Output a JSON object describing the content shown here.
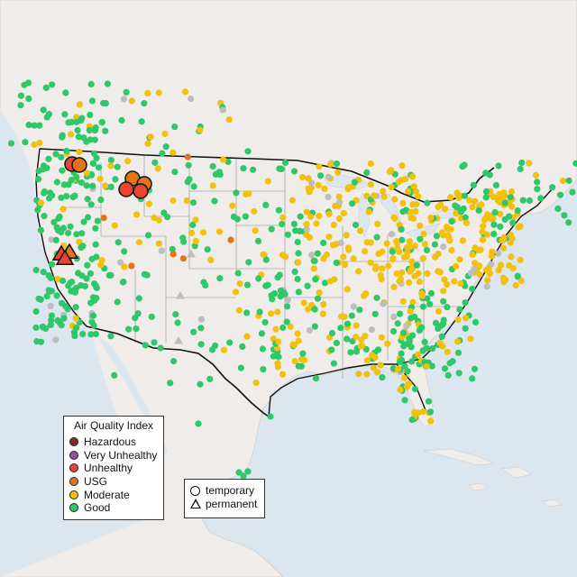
{
  "legend": {
    "title": "Air Quality Index",
    "categories": [
      {
        "label": "Hazardous",
        "color": "#7e2c2c"
      },
      {
        "label": "Very Unhealthy",
        "color": "#8f52a8"
      },
      {
        "label": "Unhealthy",
        "color": "#e8442f"
      },
      {
        "label": "USG",
        "color": "#e2741a"
      },
      {
        "label": "Moderate",
        "color": "#f2c10d"
      },
      {
        "label": "Good",
        "color": "#2ec76a"
      }
    ]
  },
  "shape_legend": {
    "temporary": "temporary",
    "permanent": "permanent"
  },
  "colors": {
    "water": "#dbe6ef",
    "land": "#efecea",
    "border": "#111111",
    "state_line": "#a9a9a9",
    "no_data": "#bdbdbd"
  }
}
